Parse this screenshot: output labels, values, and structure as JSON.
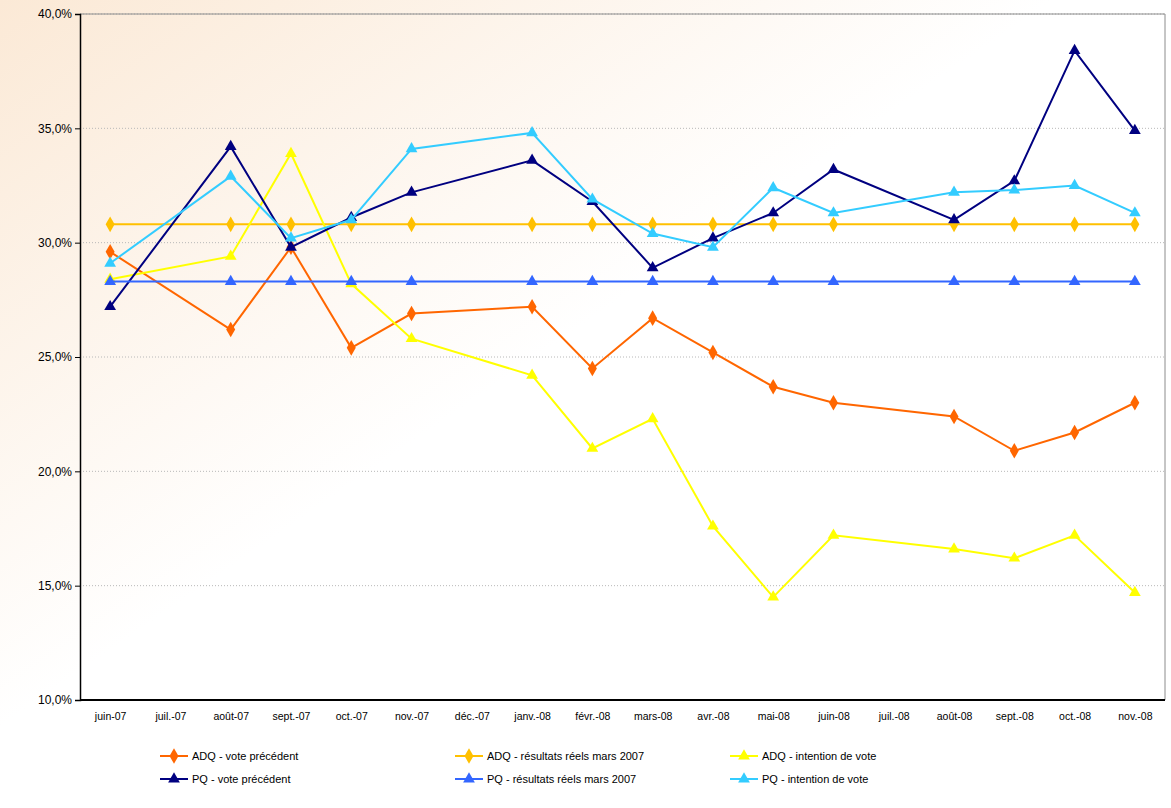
{
  "chart_data": {
    "type": "line",
    "categories": [
      "juin-07",
      "juil.-07",
      "août-07",
      "sept.-07",
      "oct.-07",
      "nov.-07",
      "déc.-07",
      "janv.-08",
      "févr.-08",
      "mars-08",
      "avr.-08",
      "mai-08",
      "juin-08",
      "juil.-08",
      "août-08",
      "sept.-08",
      "oct.-08",
      "nov.-08"
    ],
    "ylim": [
      10,
      40
    ],
    "yticks": [
      {
        "value": 10,
        "label": "10,0%"
      },
      {
        "value": 15,
        "label": "15,0%"
      },
      {
        "value": 20,
        "label": "20,0%"
      },
      {
        "value": 25,
        "label": "25,0%"
      },
      {
        "value": 30,
        "label": "30,0%"
      },
      {
        "value": 35,
        "label": "35,0%"
      },
      {
        "value": 40,
        "label": "40,0%"
      }
    ],
    "grid": true,
    "legend": "bottom",
    "series": [
      {
        "name": "ADQ - vote précédent",
        "color": "#ff6600",
        "marker": "diamond",
        "values": [
          29.6,
          null,
          26.2,
          29.8,
          25.4,
          26.9,
          null,
          27.2,
          24.5,
          26.7,
          25.2,
          23.7,
          23.0,
          null,
          22.4,
          20.9,
          21.7,
          23.0
        ]
      },
      {
        "name": "ADQ - résultats réels mars 2007",
        "color": "#ffc000",
        "marker": "diamond",
        "values": [
          30.8,
          null,
          30.8,
          30.8,
          30.8,
          30.8,
          null,
          30.8,
          30.8,
          30.8,
          30.8,
          30.8,
          30.8,
          null,
          30.8,
          30.8,
          30.8,
          30.8
        ]
      },
      {
        "name": "ADQ - intention de vote",
        "color": "#ffff00",
        "marker": "triangle",
        "values": [
          28.4,
          null,
          29.4,
          33.9,
          28.2,
          25.8,
          null,
          24.2,
          21.0,
          22.3,
          17.6,
          14.5,
          17.2,
          null,
          16.6,
          16.2,
          17.2,
          14.7
        ]
      },
      {
        "name": "PQ - vote précédent",
        "color": "#000080",
        "marker": "triangle",
        "values": [
          27.2,
          null,
          34.2,
          29.8,
          31.1,
          32.2,
          null,
          33.6,
          31.8,
          28.9,
          30.2,
          31.3,
          33.2,
          null,
          31.0,
          32.7,
          38.4,
          34.9
        ]
      },
      {
        "name": "PQ - résultats réels mars 2007",
        "color": "#3366ff",
        "marker": "triangle",
        "values": [
          28.3,
          null,
          28.3,
          28.3,
          28.3,
          28.3,
          null,
          28.3,
          28.3,
          28.3,
          28.3,
          28.3,
          28.3,
          null,
          28.3,
          28.3,
          28.3,
          28.3
        ]
      },
      {
        "name": "PQ - intention de vote",
        "color": "#33ccff",
        "marker": "triangle",
        "values": [
          29.1,
          null,
          32.9,
          30.2,
          31.0,
          34.1,
          null,
          34.8,
          31.9,
          30.4,
          29.8,
          32.4,
          31.3,
          null,
          32.2,
          32.3,
          32.5,
          31.3
        ]
      }
    ]
  }
}
